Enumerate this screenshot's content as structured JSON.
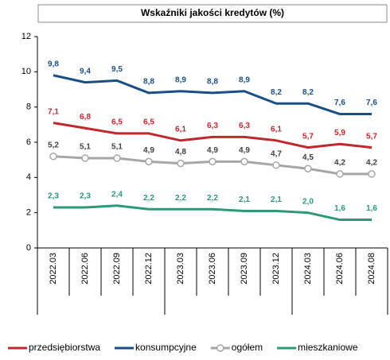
{
  "chart_data": {
    "type": "line",
    "title": "Wskaźniki jakości kredytów (%)",
    "categories": [
      "2022.03",
      "2022.06",
      "2022.09",
      "2022.12",
      "2023.03",
      "2023.06",
      "2023.09",
      "2023.12",
      "2024.03",
      "2024.06",
      "2024.08"
    ],
    "series": [
      {
        "name": "przedsiębiorstwa",
        "color": "#c0282d",
        "values": [
          7.1,
          6.8,
          6.5,
          6.5,
          6.1,
          6.3,
          6.3,
          6.1,
          5.7,
          5.9,
          5.7
        ],
        "value_labels": [
          "7,1",
          "6,8",
          "6,5",
          "6,5",
          "6,1",
          "6,3",
          "6,3",
          "6,1",
          "5,7",
          "5,9",
          "5,7"
        ]
      },
      {
        "name": "konsumpcyjne",
        "color": "#1a4f86",
        "values": [
          9.8,
          9.4,
          9.5,
          8.8,
          8.9,
          8.8,
          8.9,
          8.2,
          8.2,
          7.6,
          7.6
        ],
        "value_labels": [
          "9,8",
          "9,4",
          "9,5",
          "8,8",
          "8,9",
          "8,8",
          "8,9",
          "8,2",
          "8,2",
          "7,6",
          "7,6"
        ]
      },
      {
        "name": "ogółem",
        "color": "#a6a6a6",
        "marker": "circle",
        "label_color": "#404040",
        "values": [
          5.2,
          5.1,
          5.1,
          4.9,
          4.8,
          4.9,
          4.9,
          4.7,
          4.5,
          4.2,
          4.2
        ],
        "value_labels": [
          "5,2",
          "5,1",
          "5,1",
          "4,9",
          "4,8",
          "4,9",
          "4,9",
          "4,7",
          "4,5",
          "4,2",
          "4,2"
        ]
      },
      {
        "name": "mieszkaniowe",
        "color": "#2a9a78",
        "values": [
          2.3,
          2.3,
          2.4,
          2.2,
          2.2,
          2.2,
          2.1,
          2.1,
          2.0,
          1.6,
          1.6
        ],
        "value_labels": [
          "2,3",
          "2,3",
          "2,4",
          "2,2",
          "2,2",
          "2,2",
          "2,1",
          "2,1",
          "2,0",
          "1,6",
          "1,6"
        ]
      }
    ],
    "ylim": [
      0,
      12
    ],
    "yticks": [
      0,
      2,
      4,
      6,
      8,
      10,
      12
    ],
    "grid": false,
    "legend": "bottom"
  }
}
